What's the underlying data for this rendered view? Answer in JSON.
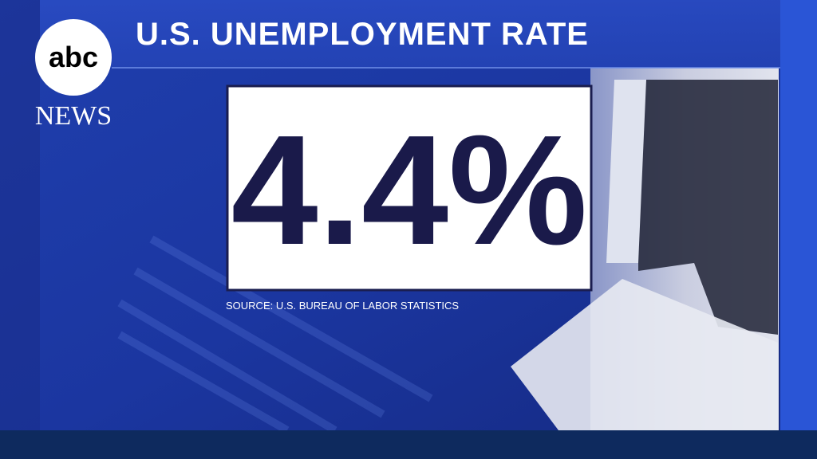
{
  "logo": {
    "mark": "abc",
    "label": "NEWS"
  },
  "headline": {
    "title": "U.S. UNEMPLOYMENT RATE"
  },
  "stat": {
    "value": "4.4%"
  },
  "source": "SOURCE: U.S. BUREAU OF LABOR STATISTICS"
}
